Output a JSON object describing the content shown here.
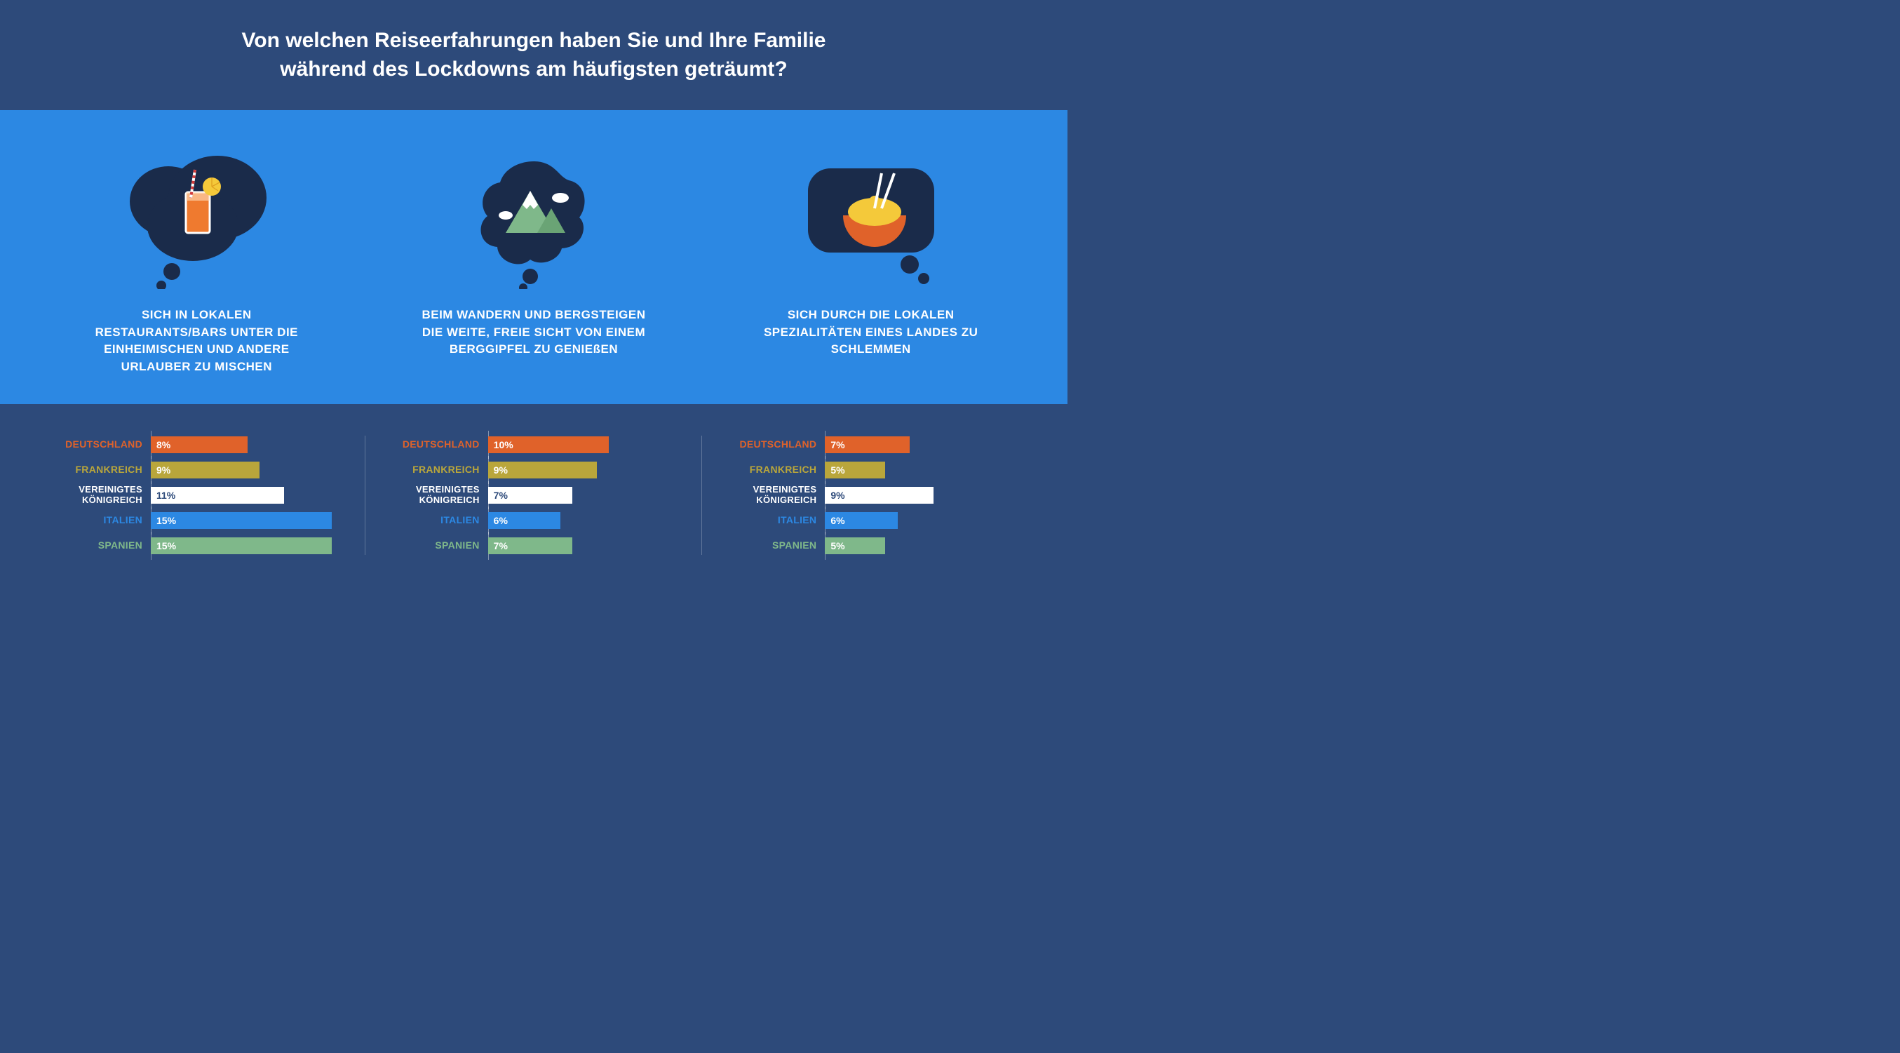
{
  "title_line1": "Von welchen Reiseerfahrungen haben Sie und Ihre Familie",
  "title_line2": "während des Lockdowns am häufigsten geträumt?",
  "palette": {
    "header_bg": "#2d4a7a",
    "mid_bg": "#2c88e3",
    "bubble_fill": "#1a2b4a",
    "white": "#ffffff"
  },
  "countries": [
    {
      "key": "de",
      "label": "DEUTSCHLAND",
      "color": "#e0622a",
      "text": "#ffffff"
    },
    {
      "key": "fr",
      "label": "FRANKREICH",
      "color": "#b9a63b",
      "text": "#ffffff"
    },
    {
      "key": "uk",
      "label": "VEREINIGTES KÖNIGREICH",
      "color": "#ffffff",
      "text": "#2d4a7a",
      "twoLine": true
    },
    {
      "key": "it",
      "label": "ITALIEN",
      "color": "#2c88e3",
      "text": "#ffffff"
    },
    {
      "key": "es",
      "label": "SPANIEN",
      "color": "#7fb88a",
      "text": "#ffffff"
    }
  ],
  "bar_scale_max": 16,
  "bar_value_text_color_on_bar": "#1a2b4a",
  "panels": [
    {
      "id": "bars",
      "caption": "SICH IN LOKALEN RESTAURANTS/BARS UNTER DIE EINHEIMISCHEN UND ANDERE URLAUBER ZU MISCHEN",
      "icon": "drink",
      "values": {
        "de": 8,
        "fr": 9,
        "uk": 11,
        "it": 15,
        "es": 15
      }
    },
    {
      "id": "hiking",
      "caption": "BEIM WANDERN UND BERGSTEIGEN DIE WEITE, FREIE SICHT VON EINEM BERGGIPFEL ZU GENIEßEN",
      "icon": "mountain",
      "values": {
        "de": 10,
        "fr": 9,
        "uk": 7,
        "it": 6,
        "es": 7
      }
    },
    {
      "id": "food",
      "caption": "SICH DURCH DIE LOKALEN SPEZIALITÄTEN EINES LANDES ZU SCHLEMMEN",
      "icon": "bowl",
      "values": {
        "de": 7,
        "fr": 5,
        "uk": 9,
        "it": 6,
        "es": 5
      }
    }
  ]
}
